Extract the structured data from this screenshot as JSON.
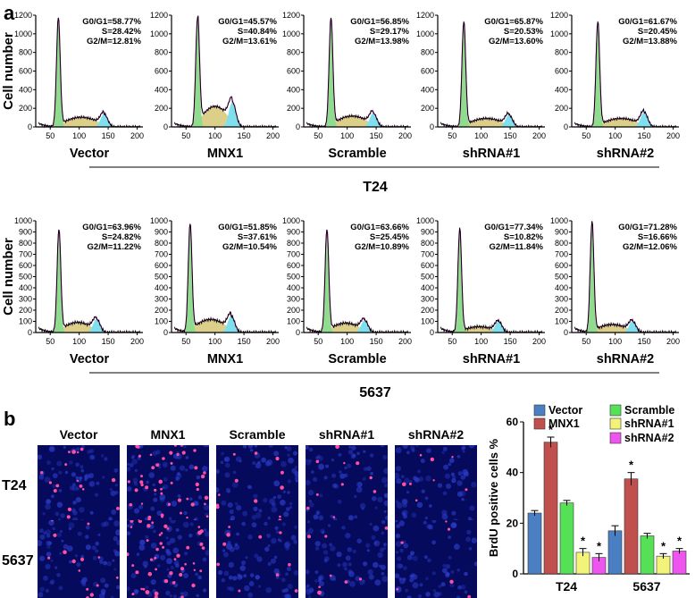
{
  "panel_a": {
    "label": "a",
    "ylabel": "Cell number",
    "xticks": [
      "50",
      "100",
      "150",
      "200"
    ],
    "rows": [
      {
        "cell_line": "T24",
        "yticks": [
          "0",
          "200",
          "400",
          "600",
          "800",
          "1000",
          "1200"
        ],
        "ymax": 1200,
        "plots": [
          {
            "condition": "Vector",
            "g0g1": "G0/G1=58.77%",
            "s": "S=28.42%",
            "g2m": "G2/M=12.81%",
            "peak": 1170,
            "g1pos": 64,
            "g2pos": 143,
            "g2h": 140,
            "sh": 80
          },
          {
            "condition": "MNX1",
            "g0g1": "G0/G1=45.57%",
            "s": "S=40.84%",
            "g2m": "G2/M=13.61%",
            "peak": 1180,
            "g1pos": 70,
            "g2pos": 130,
            "g2h": 270,
            "sh": 170
          },
          {
            "condition": "Scramble",
            "g0g1": "G0/G1=56.85%",
            "s": "S=29.17%",
            "g2m": "G2/M=13.98%",
            "peak": 1170,
            "g1pos": 72,
            "g2pos": 145,
            "g2h": 150,
            "sh": 90
          },
          {
            "condition": "shRNA#1",
            "g0g1": "G0/G1=65.87%",
            "s": "S=20.53%",
            "g2m": "G2/M=13.60%",
            "peak": 1130,
            "g1pos": 70,
            "g2pos": 148,
            "g2h": 130,
            "sh": 70
          },
          {
            "condition": "shRNA#2",
            "g0g1": "G0/G1=61.67%",
            "s": "S=20.45%",
            "g2m": "G2/M=13.88%",
            "peak": 1130,
            "g1pos": 70,
            "g2pos": 150,
            "g2h": 160,
            "sh": 70
          }
        ]
      },
      {
        "cell_line": "5637",
        "yticks": [
          "0",
          "100",
          "200",
          "300",
          "400",
          "500",
          "600",
          "700",
          "800",
          "900",
          "1000"
        ],
        "ymax": 1000,
        "plots": [
          {
            "condition": "Vector",
            "g0g1": "G0/G1=63.96%",
            "s": "S=24.82%",
            "g2m": "G2/M=11.22%",
            "peak": 920,
            "g1pos": 65,
            "g2pos": 130,
            "g2h": 120,
            "sh": 70
          },
          {
            "condition": "MNX1",
            "g0g1": "G0/G1=51.85%",
            "s": "S=37.61%",
            "g2m": "G2/M=10.54%",
            "peak": 970,
            "g1pos": 57,
            "g2pos": 128,
            "g2h": 150,
            "sh": 90
          },
          {
            "condition": "Scramble",
            "g0g1": "G0/G1=63.66%",
            "s": "S=25.45%",
            "g2m": "G2/M=10.89%",
            "peak": 920,
            "g1pos": 65,
            "g2pos": 130,
            "g2h": 110,
            "sh": 65
          },
          {
            "condition": "shRNA#1",
            "g0g1": "G0/G1=77.34%",
            "s": "S=10.82%",
            "g2m": "G2/M=11.84%",
            "peak": 930,
            "g1pos": 63,
            "g2pos": 130,
            "g2h": 100,
            "sh": 40
          },
          {
            "condition": "shRNA#2",
            "g0g1": "G0/G1=71.28%",
            "s": "S=16.66%",
            "g2m": "G2/M=12.06%",
            "peak": 990,
            "g1pos": 60,
            "g2pos": 130,
            "g2h": 100,
            "sh": 55
          }
        ]
      }
    ]
  },
  "panel_b": {
    "label": "b",
    "columns": [
      "Vector",
      "MNX1",
      "Scramble",
      "shRNA#1",
      "shRNA#2"
    ],
    "rows": [
      "T24",
      "5637"
    ]
  },
  "colors": {
    "g1_fill": "#8fdc8f",
    "s_fill": "#dccf8a",
    "g2_fill": "#7ee0ee",
    "fit_line": "#e040d0",
    "hist_line": "#000000",
    "micro_bg": "#050a5c",
    "micro_nucleus": "#2b3cc8",
    "micro_brdu": "#ff4fa0"
  },
  "chart_data": [
    {
      "type": "bar",
      "title": "",
      "xlabel": "",
      "ylabel": "BrdU positive cells %",
      "ylim": [
        0,
        60
      ],
      "yticks": [
        "0",
        "20",
        "40",
        "60"
      ],
      "grid": false,
      "legend_position": "top",
      "categories": [
        "T24",
        "5637"
      ],
      "series": [
        {
          "name": "Vector",
          "color": "#4a7fc4",
          "values": [
            24,
            17
          ],
          "errors": [
            1,
            2
          ],
          "sig": [
            "",
            ""
          ]
        },
        {
          "name": "MNX1",
          "color": "#c0504d",
          "values": [
            52,
            37.5
          ],
          "errors": [
            2,
            2.5
          ],
          "sig": [
            "*",
            "*"
          ]
        },
        {
          "name": "Scramble",
          "color": "#55e055",
          "values": [
            28,
            15
          ],
          "errors": [
            1,
            1
          ],
          "sig": [
            "",
            ""
          ]
        },
        {
          "name": "shRNA#1",
          "color": "#f3f37a",
          "values": [
            8.5,
            7
          ],
          "errors": [
            1.5,
            1
          ],
          "sig": [
            "*",
            "*"
          ]
        },
        {
          "name": "shRNA#2",
          "color": "#ee55ee",
          "values": [
            6.5,
            9
          ],
          "errors": [
            1.5,
            1
          ],
          "sig": [
            "*",
            "*"
          ]
        }
      ]
    }
  ]
}
